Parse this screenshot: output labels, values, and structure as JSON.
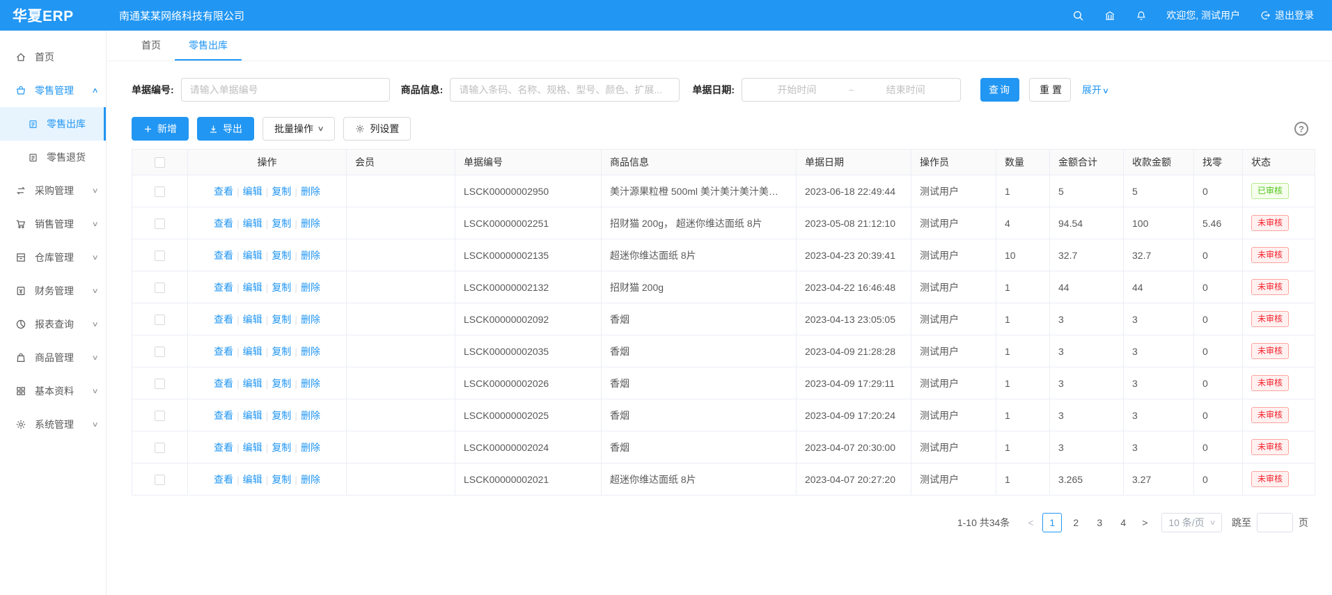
{
  "colors": {
    "accent": "#2196f3",
    "approved_green": "#52c41a",
    "pending_red": "#f5222d"
  },
  "header": {
    "logo": "华夏ERP",
    "company": "南通某某网络科技有限公司",
    "icons": [
      "search-icon",
      "bank-icon",
      "bell-icon"
    ],
    "welcome": "欢迎您, 测试用户",
    "logout": "退出登录"
  },
  "sidebar": {
    "items": [
      {
        "name": "home",
        "label": "首页",
        "icon": "home-icon",
        "type": "item"
      },
      {
        "name": "retail-manage",
        "label": "零售管理",
        "icon": "retail-icon",
        "type": "item",
        "chevron": "up",
        "active": true
      },
      {
        "name": "retail-outbound",
        "label": "零售出库",
        "icon": "doc-icon",
        "type": "sub",
        "selected": true
      },
      {
        "name": "retail-return",
        "label": "零售退货",
        "icon": "doc-icon",
        "type": "sub"
      },
      {
        "name": "purchase",
        "label": "采购管理",
        "icon": "purchase-icon",
        "type": "item",
        "chevron": "down"
      },
      {
        "name": "sales",
        "label": "销售管理",
        "icon": "sales-icon",
        "type": "item",
        "chevron": "down"
      },
      {
        "name": "warehouse",
        "label": "仓库管理",
        "icon": "warehouse-icon",
        "type": "item",
        "chevron": "down"
      },
      {
        "name": "finance",
        "label": "财务管理",
        "icon": "finance-icon",
        "type": "item",
        "chevron": "down"
      },
      {
        "name": "reports",
        "label": "报表查询",
        "icon": "report-icon",
        "type": "item",
        "chevron": "down"
      },
      {
        "name": "goods",
        "label": "商品管理",
        "icon": "goods-icon",
        "type": "item",
        "chevron": "down"
      },
      {
        "name": "basic-data",
        "label": "基本资料",
        "icon": "basic-icon",
        "type": "item",
        "chevron": "down"
      },
      {
        "name": "system",
        "label": "系统管理",
        "icon": "system-icon",
        "type": "item",
        "chevron": "down"
      }
    ]
  },
  "tabs": [
    {
      "label": "首页",
      "active": false
    },
    {
      "label": "零售出库",
      "active": true
    }
  ],
  "filters": {
    "bill_no_label": "单据编号:",
    "bill_no_placeholder": "请输入单据编号",
    "product_label": "商品信息:",
    "product_placeholder": "请输入条码、名称、规格、型号、颜色、扩展...",
    "date_label": "单据日期:",
    "date_start_placeholder": "开始时间",
    "date_separator": "~",
    "date_end_placeholder": "结束时间",
    "search_button": "查询",
    "reset_button": "重置",
    "expand_link": "展开"
  },
  "toolbar": {
    "add_button": "新增",
    "export_button": "导出",
    "batch_button": "批量操作",
    "columns_button": "列设置",
    "help_icon": "?"
  },
  "table": {
    "headers": [
      "操作",
      "会员",
      "单据编号",
      "商品信息",
      "单据日期",
      "操作员",
      "数量",
      "金额合计",
      "收款金额",
      "找零",
      "状态"
    ],
    "action_links": [
      "查看",
      "编辑",
      "复制",
      "删除"
    ],
    "rows": [
      {
        "member": "",
        "bill_no": "LSCK00000002950",
        "product": "美汁源果粒橙 500ml 美汁美汁美汁美汁美...",
        "date": "2023-06-18 22:49:44",
        "operator": "测试用户",
        "qty": "1",
        "total": "5",
        "received": "5",
        "change": "0",
        "status": "已审核",
        "status_type": "approved"
      },
      {
        "member": "",
        "bill_no": "LSCK00000002251",
        "product": "招财猫 200g， 超迷你维达面纸 8片",
        "date": "2023-05-08 21:12:10",
        "operator": "测试用户",
        "qty": "4",
        "total": "94.54",
        "received": "100",
        "change": "5.46",
        "status": "未审核",
        "status_type": "pending"
      },
      {
        "member": "",
        "bill_no": "LSCK00000002135",
        "product": "超迷你维达面纸 8片",
        "date": "2023-04-23 20:39:41",
        "operator": "测试用户",
        "qty": "10",
        "total": "32.7",
        "received": "32.7",
        "change": "0",
        "status": "未审核",
        "status_type": "pending"
      },
      {
        "member": "",
        "bill_no": "LSCK00000002132",
        "product": "招财猫 200g",
        "date": "2023-04-22 16:46:48",
        "operator": "测试用户",
        "qty": "1",
        "total": "44",
        "received": "44",
        "change": "0",
        "status": "未审核",
        "status_type": "pending"
      },
      {
        "member": "",
        "bill_no": "LSCK00000002092",
        "product": "香烟",
        "date": "2023-04-13 23:05:05",
        "operator": "测试用户",
        "qty": "1",
        "total": "3",
        "received": "3",
        "change": "0",
        "status": "未审核",
        "status_type": "pending"
      },
      {
        "member": "",
        "bill_no": "LSCK00000002035",
        "product": "香烟",
        "date": "2023-04-09 21:28:28",
        "operator": "测试用户",
        "qty": "1",
        "total": "3",
        "received": "3",
        "change": "0",
        "status": "未审核",
        "status_type": "pending"
      },
      {
        "member": "",
        "bill_no": "LSCK00000002026",
        "product": "香烟",
        "date": "2023-04-09 17:29:11",
        "operator": "测试用户",
        "qty": "1",
        "total": "3",
        "received": "3",
        "change": "0",
        "status": "未审核",
        "status_type": "pending"
      },
      {
        "member": "",
        "bill_no": "LSCK00000002025",
        "product": "香烟",
        "date": "2023-04-09 17:20:24",
        "operator": "测试用户",
        "qty": "1",
        "total": "3",
        "received": "3",
        "change": "0",
        "status": "未审核",
        "status_type": "pending"
      },
      {
        "member": "",
        "bill_no": "LSCK00000002024",
        "product": "香烟",
        "date": "2023-04-07 20:30:00",
        "operator": "测试用户",
        "qty": "1",
        "total": "3",
        "received": "3",
        "change": "0",
        "status": "未审核",
        "status_type": "pending"
      },
      {
        "member": "",
        "bill_no": "LSCK00000002021",
        "product": "超迷你维达面纸 8片",
        "date": "2023-04-07 20:27:20",
        "operator": "测试用户",
        "qty": "1",
        "total": "3.265",
        "received": "3.27",
        "change": "0",
        "status": "未审核",
        "status_type": "pending"
      }
    ]
  },
  "pagination": {
    "summary": "1-10 共34条",
    "prev_arrow": "<",
    "next_arrow": ">",
    "pages": [
      "1",
      "2",
      "3",
      "4"
    ],
    "current": "1",
    "page_size": "10 条/页",
    "jump_label": "跳至",
    "jump_suffix": "页"
  }
}
